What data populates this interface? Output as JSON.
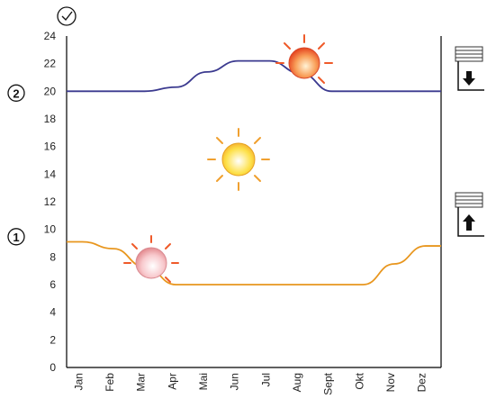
{
  "chart_data": {
    "type": "line",
    "xlabel": "",
    "ylabel": "",
    "ylim": [
      0,
      24
    ],
    "yticks": [
      0,
      2,
      4,
      6,
      8,
      10,
      12,
      14,
      16,
      18,
      20,
      22,
      24
    ],
    "categories": [
      "Jan",
      "Feb",
      "Mar",
      "Apr",
      "Mai",
      "Jun",
      "Jul",
      "Aug",
      "Sept",
      "Okt",
      "Nov",
      "Dez"
    ],
    "grid": false,
    "series": [
      {
        "color": "#3b3a8f",
        "values": [
          20,
          20,
          20,
          20.3,
          21.4,
          22.2,
          22.2,
          21.3,
          20,
          20,
          20,
          20
        ]
      },
      {
        "color": "#e8961e",
        "values": [
          9.1,
          8.6,
          7.3,
          6,
          6,
          6,
          6,
          6,
          6,
          6,
          7.5,
          8.8
        ]
      }
    ]
  },
  "markers": [
    {
      "label": "2",
      "value": 20
    },
    {
      "label": "1",
      "value": 9.6
    }
  ],
  "icons": {
    "clock": "clock-check-icon",
    "shutter_down": "shutter-down-icon",
    "shutter_up": "shutter-up-icon"
  },
  "colors": {
    "axis": "#000000",
    "sun_fill_top": "#fbe24a",
    "sun_fill_bottom": "#ffffff",
    "sun_red": "#ef5a2a",
    "sun_pink": "#f6b4bc",
    "sun_rays": "#f0a030"
  }
}
